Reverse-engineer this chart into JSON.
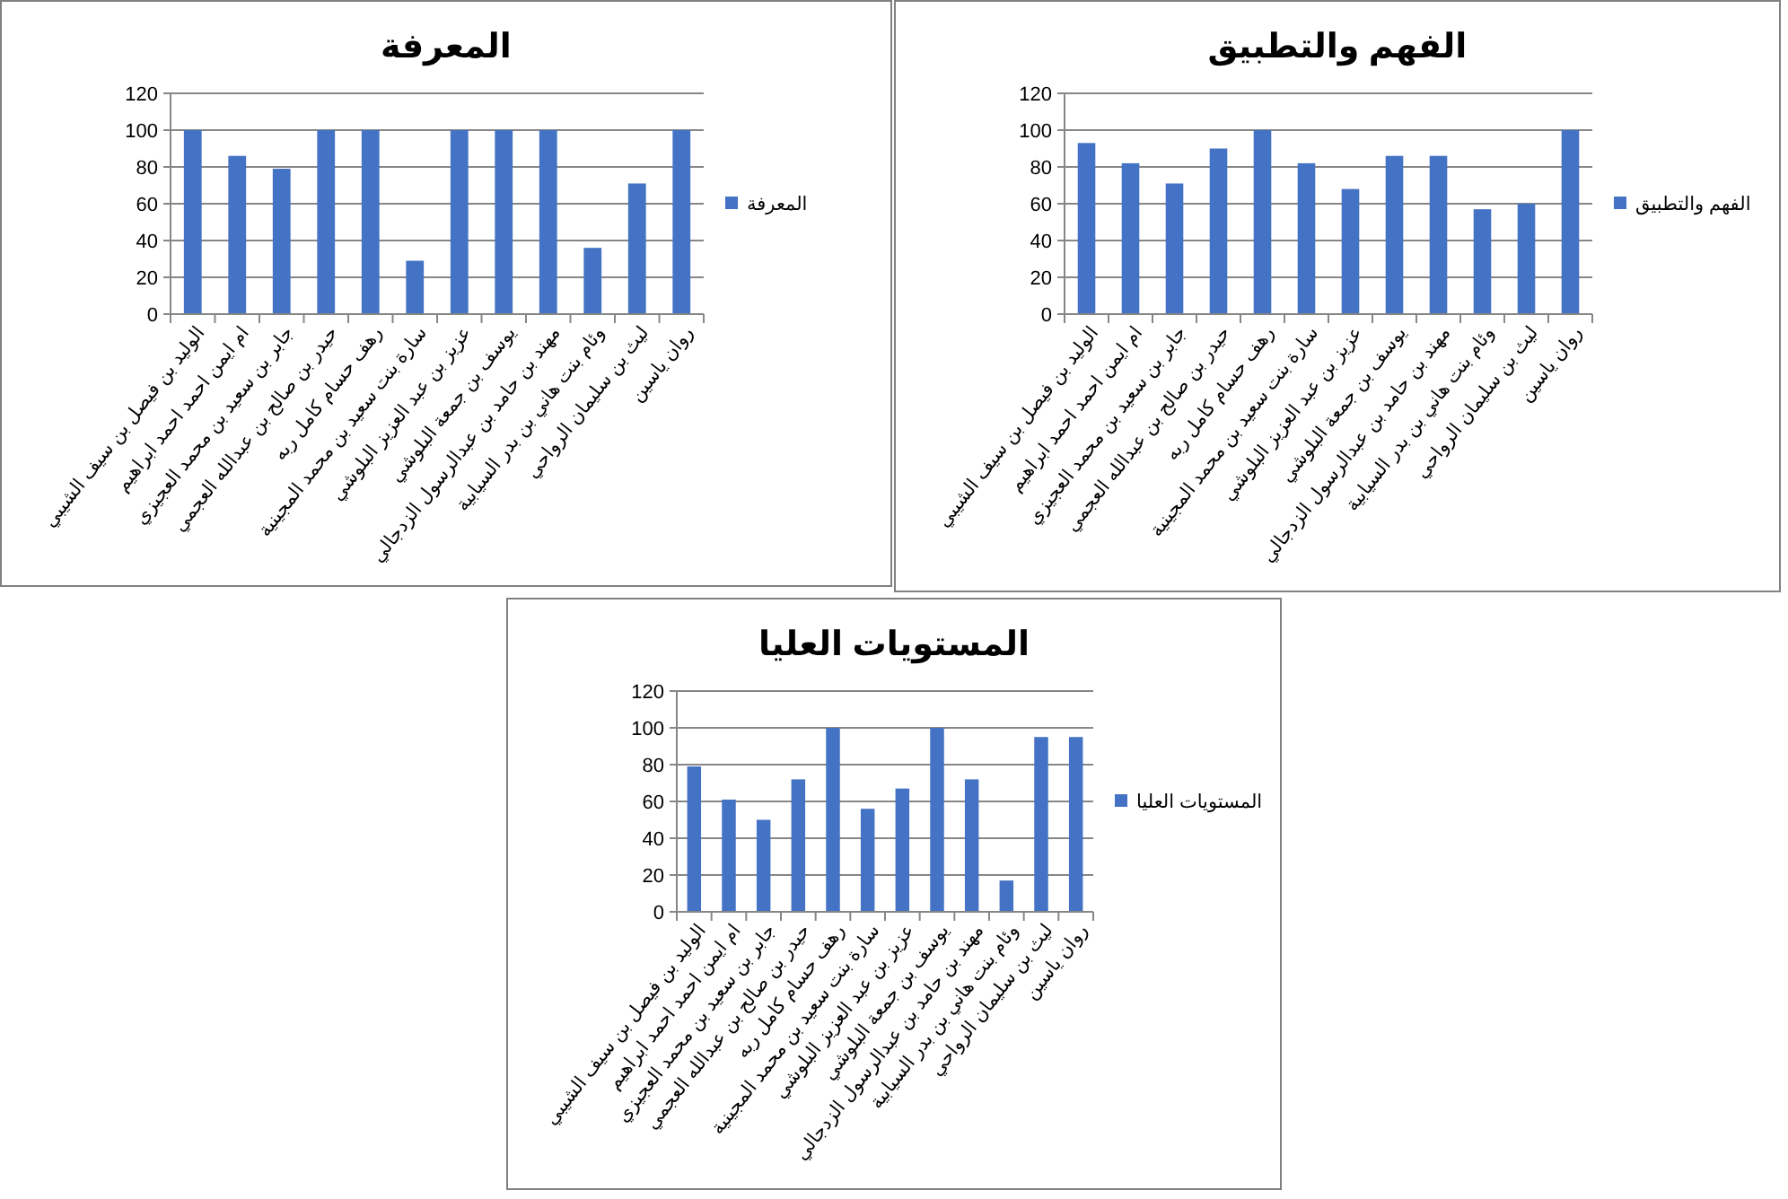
{
  "chart_data": [
    {
      "type": "bar",
      "title": "المعرفة",
      "categories": [
        "الوليد بن فيصل بن سيف الشيبي",
        "ام ايمن احمد احمد ابراهيم",
        "جابر بن سعيد بن محمد العجيزي",
        "حيدر بن صالح بن عبدالله العجمي",
        "رهف حسام كامل ربه",
        "سارة بنت سعيد بن محمد المجينية",
        "عزيز بن عبد العزيز البلوشي",
        "يوسف بن جمعة البلوشي",
        "مهند بن حامد بن عبدالرسول الزدجالي",
        "وئام بنت هاني بن بدر السيابية",
        "ليث بن سليمان الرواحي",
        "روان ياسين"
      ],
      "series": [
        {
          "name": "المعرفة",
          "color": "#4472c4",
          "values": [
            100,
            86,
            79,
            100,
            100,
            29,
            100,
            100,
            100,
            36,
            71,
            100
          ]
        }
      ],
      "ylim": [
        0,
        120
      ],
      "yticks": [
        0,
        20,
        40,
        60,
        80,
        100,
        120
      ],
      "grid": "y",
      "legend": "right"
    },
    {
      "type": "bar",
      "title": "الفهم والتطبيق",
      "categories": [
        "الوليد بن فيصل بن سيف الشيبي",
        "ام ايمن احمد احمد ابراهيم",
        "جابر بن سعيد بن محمد العجيزي",
        "حيدر بن صالح بن عبدالله العجمي",
        "رهف حسام كامل ربه",
        "سارة بنت سعيد بن محمد المجينية",
        "عزيز بن عبد العزيز البلوشي",
        "يوسف بن جمعة البلوشي",
        "مهند بن حامد بن عبدالرسول الزدجالي",
        "وئام بنت هاني بن بدر السيابية",
        "ليث بن سليمان الرواحي",
        "روان ياسين"
      ],
      "series": [
        {
          "name": "الفهم والتطبيق",
          "color": "#4472c4",
          "values": [
            93,
            82,
            71,
            90,
            100,
            82,
            68,
            86,
            86,
            57,
            60,
            100
          ]
        }
      ],
      "ylim": [
        0,
        120
      ],
      "yticks": [
        0,
        20,
        40,
        60,
        80,
        100,
        120
      ],
      "grid": "y",
      "legend": "right"
    },
    {
      "type": "bar",
      "title": "المستويات العليا",
      "categories": [
        "الوليد بن فيصل بن سيف الشيبي",
        "ام ايمن احمد احمد ابراهيم",
        "جابر بن سعيد بن محمد العجيزي",
        "حيدر بن صالح بن عبدالله العجمي",
        "رهف حسام كامل ربه",
        "سارة بنت سعيد بن محمد المجينية",
        "عزيز بن عبد العزيز البلوشي",
        "يوسف بن جمعة البلوشي",
        "مهند بن حامد بن عبدالرسول الزدجالي",
        "وئام بنت هاني بن بدر السيابية",
        "ليث بن سليمان الرواحي",
        "روان ياسين"
      ],
      "series": [
        {
          "name": "المستويات العليا",
          "color": "#4472c4",
          "values": [
            79,
            61,
            50,
            72,
            100,
            56,
            67,
            100,
            72,
            17,
            95,
            95
          ]
        }
      ],
      "ylim": [
        0,
        120
      ],
      "yticks": [
        0,
        20,
        40,
        60,
        80,
        100,
        120
      ],
      "grid": "y",
      "legend": "right"
    }
  ]
}
